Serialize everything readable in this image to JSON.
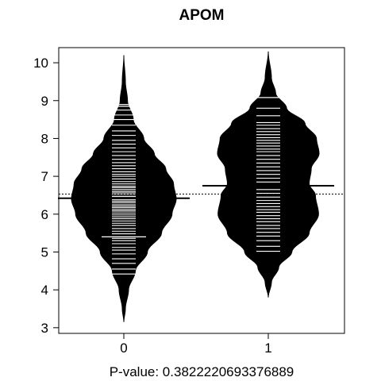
{
  "chart_data": {
    "type": "beanplot",
    "title": "APOM",
    "xlabel": "P-value: 0.3822220693376889",
    "ylabel": "",
    "categories": [
      "0",
      "1"
    ],
    "y_ticks": [
      "3",
      "4",
      "5",
      "6",
      "7",
      "8",
      "9",
      "10"
    ],
    "ylim": [
      2.85,
      10.4
    ],
    "overall_mean": 6.53,
    "colors": {
      "bean": "#000000",
      "strips": "#ffffff",
      "mean_line": "#000000"
    },
    "beans": [
      {
        "category": "0",
        "mean": 6.42,
        "range": [
          3.15,
          10.2
        ],
        "density_profile": [
          [
            3.15,
            0.0
          ],
          [
            3.5,
            0.03
          ],
          [
            4.0,
            0.09
          ],
          [
            4.5,
            0.22
          ],
          [
            5.0,
            0.45
          ],
          [
            5.5,
            0.72
          ],
          [
            6.0,
            0.92
          ],
          [
            6.4,
            1.0
          ],
          [
            6.8,
            0.95
          ],
          [
            7.2,
            0.8
          ],
          [
            7.6,
            0.58
          ],
          [
            8.0,
            0.38
          ],
          [
            8.5,
            0.18
          ],
          [
            9.0,
            0.07
          ],
          [
            9.5,
            0.03
          ],
          [
            10.2,
            0.0
          ]
        ],
        "observations": [
          4.42,
          4.55,
          4.7,
          4.82,
          4.95,
          5.05,
          5.12,
          5.22,
          5.3,
          5.36,
          5.4,
          5.48,
          5.55,
          5.62,
          5.7,
          5.76,
          5.82,
          5.88,
          5.93,
          5.98,
          6.03,
          6.08,
          6.12,
          6.17,
          6.21,
          6.25,
          6.3,
          6.34,
          6.38,
          6.43,
          6.47,
          6.52,
          6.56,
          6.6,
          6.65,
          6.7,
          6.74,
          6.8,
          6.86,
          6.93,
          7.0,
          7.05,
          7.12,
          7.2,
          7.28,
          7.36,
          7.45,
          7.55,
          7.65,
          7.75,
          7.85,
          7.95,
          8.08,
          8.2,
          8.35,
          8.5,
          8.62,
          8.75,
          8.85,
          8.9
        ],
        "wide_strips": [
          5.4,
          8.85
        ]
      },
      {
        "category": "1",
        "mean": 6.75,
        "range": [
          3.8,
          10.3
        ],
        "density_profile": [
          [
            3.8,
            0.0
          ],
          [
            4.2,
            0.06
          ],
          [
            4.6,
            0.2
          ],
          [
            5.0,
            0.45
          ],
          [
            5.5,
            0.78
          ],
          [
            6.0,
            0.96
          ],
          [
            6.5,
            0.9
          ],
          [
            6.8,
            0.78
          ],
          [
            7.2,
            0.82
          ],
          [
            7.6,
            0.97
          ],
          [
            8.0,
            0.92
          ],
          [
            8.4,
            0.7
          ],
          [
            8.8,
            0.35
          ],
          [
            9.2,
            0.14
          ],
          [
            9.6,
            0.06
          ],
          [
            10.3,
            0.0
          ]
        ],
        "observations": [
          5.02,
          5.15,
          5.3,
          5.42,
          5.52,
          5.62,
          5.7,
          5.8,
          5.88,
          5.96,
          6.05,
          6.12,
          6.2,
          6.28,
          6.36,
          6.45,
          6.55,
          6.65,
          6.75,
          6.85,
          6.95,
          7.05,
          7.15,
          7.25,
          7.35,
          7.45,
          7.55,
          7.65,
          7.72,
          7.8,
          7.88,
          7.95,
          8.02,
          8.1,
          8.18,
          8.26,
          8.35,
          8.42,
          8.6,
          8.8,
          9.08
        ],
        "wide_strips": [
          9.08
        ]
      }
    ]
  }
}
